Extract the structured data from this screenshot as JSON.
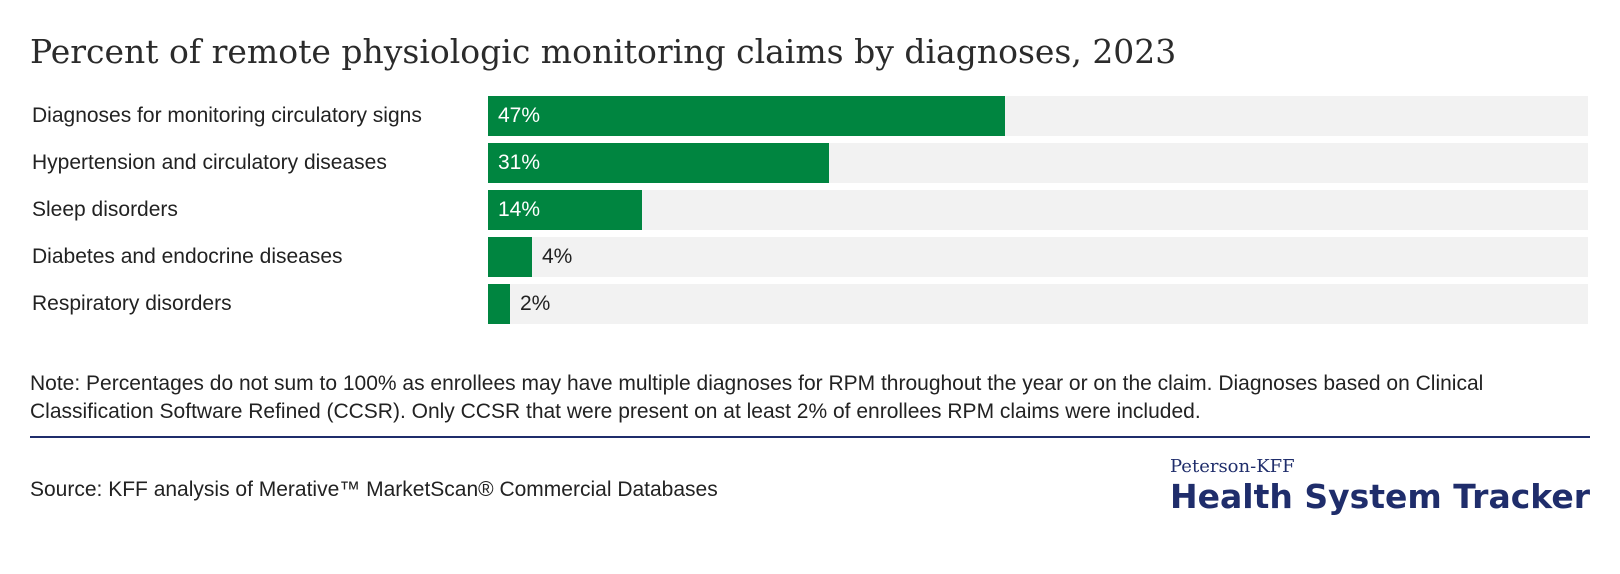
{
  "title": "Percent of remote physiologic monitoring claims by diagnoses, 2023",
  "chart_data": {
    "type": "bar",
    "orientation": "horizontal",
    "title": "Percent of remote physiologic monitoring claims by diagnoses, 2023",
    "categories": [
      "Diagnoses for monitoring circulatory signs",
      "Hypertension and circulatory diseases",
      "Sleep disorders",
      "Diabetes and endocrine diseases",
      "Respiratory disorders"
    ],
    "values": [
      47,
      31,
      14,
      4,
      2
    ],
    "value_labels": [
      "47%",
      "31%",
      "14%",
      "4%",
      "2%"
    ],
    "xlim": [
      0,
      100
    ],
    "unit": "%",
    "xlabel": "",
    "ylabel": ""
  },
  "colors": {
    "bar": "#008540",
    "track": "#f2f2f2",
    "brand": "#1f2d6b"
  },
  "note": "Note: Percentages do not sum to 100% as enrollees may have multiple diagnoses for RPM throughout the year or on the claim. Diagnoses based on Clinical Classification Software Refined (CCSR). Only CCSR that were present on at least 2% of enrollees RPM claims were included.",
  "source": "Source: KFF analysis of Merative™ MarketScan® Commercial Databases",
  "brand": {
    "small": "Peterson-KFF",
    "big": "Health System Tracker"
  }
}
